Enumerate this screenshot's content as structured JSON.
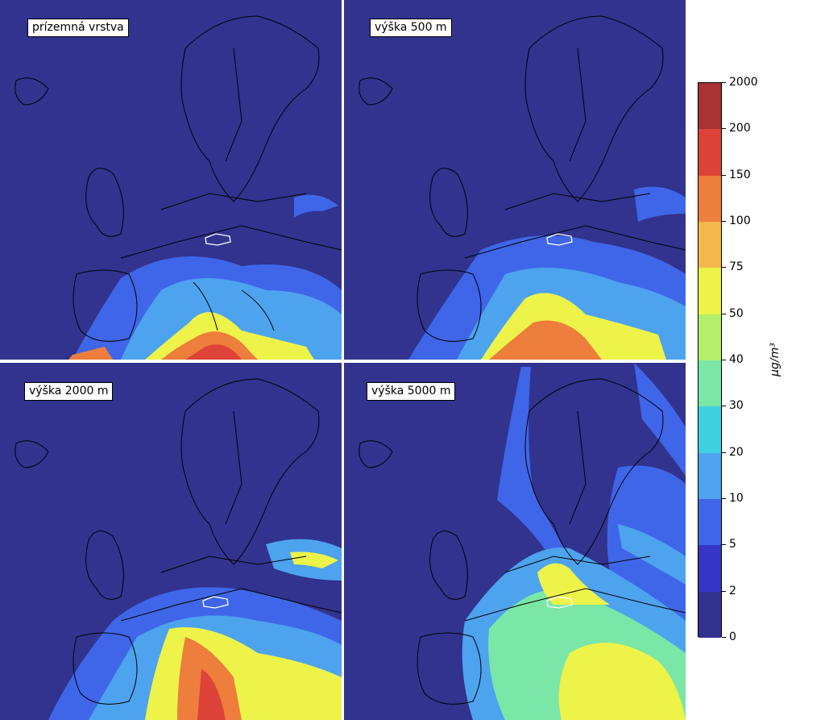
{
  "panels": [
    {
      "label": "prízemná vrstva"
    },
    {
      "label": "výška 500 m"
    },
    {
      "label": "výška 2000 m"
    },
    {
      "label": "výška 5000 m"
    }
  ],
  "colorbar": {
    "ticks": [
      "0",
      "2",
      "5",
      "10",
      "20",
      "30",
      "40",
      "50",
      "75",
      "100",
      "150",
      "200",
      "2000"
    ],
    "colors": [
      "#31338f",
      "#3535c6",
      "#3f66e8",
      "#4da3ee",
      "#3fd0e0",
      "#7ae7a6",
      "#b4ef6b",
      "#eef34a",
      "#f2b84c",
      "#ee7e3c",
      "#dd4338",
      "#a93233",
      "#7a3030"
    ],
    "unit_label": "μg/m³"
  }
}
